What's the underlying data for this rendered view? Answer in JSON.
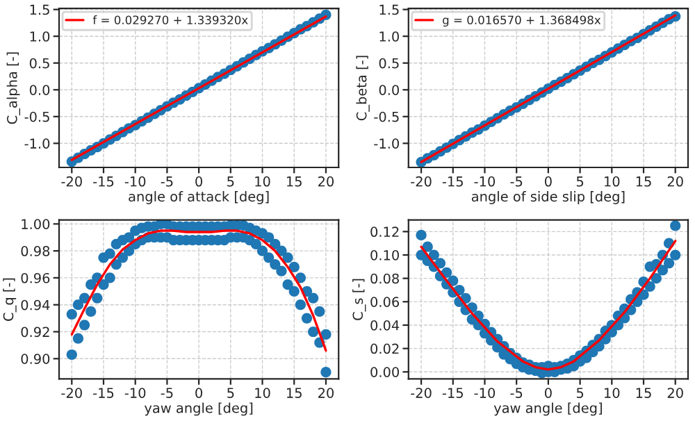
{
  "chart_data": [
    {
      "type": "scatter",
      "xlabel": "angle of attack [deg]",
      "ylabel": "C_alpha [-]",
      "xlim": [
        -22,
        22
      ],
      "ylim": [
        -1.45,
        1.52
      ],
      "xticks": [
        -20,
        -15,
        -10,
        -5,
        0,
        5,
        10,
        15,
        20
      ],
      "yticks": [
        {
          "value": -1,
          "label": "-1.0"
        },
        -0.5,
        {
          "value": 0,
          "label": "0.0"
        },
        0.5,
        {
          "value": 1,
          "label": "1.0"
        },
        1.5
      ],
      "grid": true,
      "legend": "top left",
      "series": [
        {
          "marker": "circle",
          "color": "#1f77b4",
          "x": [
            -20,
            -19,
            -18,
            -17,
            -16,
            -15,
            -14,
            -13,
            -12,
            -11,
            -10,
            -9,
            -8,
            -7,
            -6,
            -5,
            -4,
            -3,
            -2,
            -1,
            0,
            1,
            2,
            3,
            4,
            5,
            6,
            7,
            8,
            9,
            10,
            11,
            12,
            13,
            14,
            15,
            16,
            17,
            18,
            19,
            20
          ],
          "values": [
            -1.34,
            -1.27,
            -1.2,
            -1.13,
            -1.07,
            -1.0,
            -0.93,
            -0.86,
            -0.79,
            -0.72,
            -0.66,
            -0.59,
            -0.52,
            -0.45,
            -0.38,
            -0.31,
            -0.24,
            -0.18,
            -0.11,
            -0.04,
            0.03,
            0.1,
            0.17,
            0.24,
            0.3,
            0.37,
            0.44,
            0.51,
            0.58,
            0.65,
            0.72,
            0.78,
            0.85,
            0.92,
            0.99,
            1.06,
            1.13,
            1.19,
            1.26,
            1.33,
            1.4
          ]
        },
        {
          "type": "line",
          "name": "f = 0.029270 + 1.339320x",
          "color": "#ff0000",
          "x": [
            -20,
            20
          ],
          "values": [
            -1.31,
            1.37
          ]
        }
      ]
    },
    {
      "type": "scatter",
      "xlabel": "angle of side slip [deg]",
      "ylabel": "C_beta [-]",
      "xlim": [
        -22,
        22
      ],
      "ylim": [
        -1.45,
        1.52
      ],
      "xticks": [
        -20,
        -15,
        -10,
        -5,
        0,
        5,
        10,
        15,
        20
      ],
      "yticks": [
        {
          "value": -1,
          "label": "-1.0"
        },
        -0.5,
        {
          "value": 0,
          "label": "0.0"
        },
        0.5,
        {
          "value": 1,
          "label": "1.0"
        },
        1.5
      ],
      "grid": true,
      "legend": "top left",
      "series": [
        {
          "marker": "circle",
          "color": "#1f77b4",
          "x": [
            -20,
            -19,
            -18,
            -17,
            -16,
            -15,
            -14,
            -13,
            -12,
            -11,
            -10,
            -9,
            -8,
            -7,
            -6,
            -5,
            -4,
            -3,
            -2,
            -1,
            0,
            1,
            2,
            3,
            4,
            5,
            6,
            7,
            8,
            9,
            10,
            11,
            12,
            13,
            14,
            15,
            16,
            17,
            18,
            19,
            20
          ],
          "values": [
            -1.35,
            -1.28,
            -1.22,
            -1.15,
            -1.08,
            -1.01,
            -0.94,
            -0.87,
            -0.8,
            -0.74,
            -0.67,
            -0.6,
            -0.53,
            -0.46,
            -0.39,
            -0.33,
            -0.26,
            -0.19,
            -0.12,
            -0.05,
            0.02,
            0.09,
            0.15,
            0.22,
            0.29,
            0.36,
            0.43,
            0.5,
            0.56,
            0.63,
            0.7,
            0.77,
            0.84,
            0.91,
            0.97,
            1.04,
            1.11,
            1.18,
            1.25,
            1.32,
            1.37
          ]
        },
        {
          "type": "line",
          "name": "g = 0.016570 + 1.368498x",
          "color": "#ff0000",
          "x": [
            -20,
            20
          ],
          "values": [
            -1.35,
            1.39
          ]
        }
      ]
    },
    {
      "type": "scatter",
      "xlabel": "yaw angle [deg]",
      "ylabel": "C_q [-]",
      "xlim": [
        -22,
        22
      ],
      "ylim": [
        0.885,
        1.003
      ],
      "xticks": [
        -20,
        -15,
        -10,
        -5,
        0,
        5,
        10,
        15,
        20
      ],
      "yticks": [
        {
          "value": 0.9,
          "label": "0.90"
        },
        0.92,
        0.94,
        0.96,
        0.98,
        {
          "value": 1,
          "label": "1.00"
        }
      ],
      "grid": true,
      "series": [
        {
          "marker": "circle",
          "color": "#1f77b4",
          "x": [
            -20,
            -20,
            -19,
            -19,
            -18,
            -18,
            -17,
            -17,
            -16,
            -16,
            -15,
            -15,
            -14,
            -14,
            -13,
            -13,
            -12,
            -12,
            -11,
            -11,
            -10,
            -10,
            -9,
            -9,
            -8,
            -8,
            -7,
            -7,
            -6,
            -6,
            -5,
            -5,
            -4,
            -4,
            -3,
            -3,
            -2,
            -2,
            -1,
            -1,
            0,
            0,
            1,
            1,
            2,
            2,
            3,
            3,
            4,
            4,
            5,
            5,
            6,
            6,
            7,
            7,
            8,
            8,
            9,
            9,
            10,
            10,
            11,
            11,
            12,
            12,
            13,
            13,
            14,
            14,
            15,
            15,
            16,
            16,
            17,
            17,
            18,
            18,
            19,
            19,
            20,
            20
          ],
          "values": [
            0.903,
            0.933,
            0.915,
            0.94,
            0.925,
            0.945,
            0.935,
            0.955,
            0.945,
            0.96,
            0.955,
            0.975,
            0.96,
            0.978,
            0.97,
            0.985,
            0.975,
            0.988,
            0.98,
            0.99,
            0.985,
            0.995,
            0.988,
            0.997,
            0.99,
            0.998,
            0.99,
            0.998,
            0.99,
            1.0,
            0.99,
            1.0,
            0.988,
            0.998,
            0.988,
            0.998,
            0.988,
            0.998,
            0.988,
            0.998,
            0.988,
            0.998,
            0.988,
            0.998,
            0.988,
            0.998,
            0.988,
            0.998,
            0.988,
            0.998,
            0.99,
            0.999,
            0.99,
            0.999,
            0.99,
            0.999,
            0.988,
            0.997,
            0.985,
            0.995,
            0.98,
            0.993,
            0.975,
            0.99,
            0.97,
            0.985,
            0.965,
            0.98,
            0.955,
            0.975,
            0.95,
            0.968,
            0.94,
            0.96,
            0.93,
            0.95,
            0.92,
            0.945,
            0.912,
            0.935,
            0.89,
            0.918
          ]
        },
        {
          "type": "line",
          "color": "#ff0000",
          "x": [
            -20,
            -18,
            -16,
            -14,
            -12,
            -10,
            -8,
            -6,
            -4,
            -2,
            0,
            2,
            4,
            6,
            8,
            10,
            12,
            14,
            16,
            18,
            20
          ],
          "values": [
            0.918,
            0.937,
            0.955,
            0.97,
            0.981,
            0.988,
            0.993,
            0.995,
            0.995,
            0.994,
            0.994,
            0.994,
            0.995,
            0.995,
            0.993,
            0.988,
            0.98,
            0.968,
            0.953,
            0.932,
            0.906
          ]
        }
      ]
    },
    {
      "type": "scatter",
      "xlabel": "yaw angle [deg]",
      "ylabel": "C_s [-]",
      "xlim": [
        -22,
        22
      ],
      "ylim": [
        -0.006,
        0.13
      ],
      "xticks": [
        -20,
        -15,
        -10,
        -5,
        0,
        5,
        10,
        15,
        20
      ],
      "yticks": [
        {
          "value": 0,
          "label": "0.00"
        },
        0.02,
        0.04,
        0.06,
        0.08,
        {
          "value": 0.1,
          "label": "0.10"
        },
        0.12
      ],
      "grid": true,
      "series": [
        {
          "marker": "circle",
          "color": "#1f77b4",
          "x": [
            -20,
            -20,
            -19,
            -19,
            -18,
            -18,
            -17,
            -17,
            -16,
            -16,
            -15,
            -15,
            -14,
            -14,
            -13,
            -13,
            -12,
            -12,
            -11,
            -11,
            -10,
            -10,
            -9,
            -9,
            -8,
            -8,
            -7,
            -7,
            -6,
            -6,
            -5,
            -5,
            -4,
            -4,
            -3,
            -3,
            -2,
            -2,
            -1,
            -1,
            0,
            0,
            1,
            1,
            2,
            2,
            3,
            3,
            4,
            4,
            5,
            5,
            6,
            6,
            7,
            7,
            8,
            8,
            9,
            9,
            10,
            10,
            11,
            11,
            12,
            12,
            13,
            13,
            14,
            14,
            15,
            15,
            16,
            16,
            17,
            17,
            18,
            18,
            19,
            19,
            20,
            20
          ],
          "values": [
            0.1,
            0.117,
            0.095,
            0.107,
            0.09,
            0.1,
            0.082,
            0.093,
            0.075,
            0.085,
            0.068,
            0.078,
            0.06,
            0.07,
            0.053,
            0.063,
            0.045,
            0.055,
            0.04,
            0.048,
            0.033,
            0.041,
            0.027,
            0.034,
            0.021,
            0.028,
            0.015,
            0.022,
            0.011,
            0.016,
            0.007,
            0.012,
            0.004,
            0.008,
            0.002,
            0.006,
            0.001,
            0.004,
            -0.001,
            0.004,
            0.0,
            0.005,
            0.0,
            0.004,
            0.002,
            0.005,
            0.003,
            0.007,
            0.005,
            0.01,
            0.009,
            0.014,
            0.012,
            0.018,
            0.017,
            0.023,
            0.022,
            0.028,
            0.028,
            0.035,
            0.034,
            0.04,
            0.04,
            0.048,
            0.046,
            0.054,
            0.053,
            0.062,
            0.06,
            0.068,
            0.066,
            0.077,
            0.073,
            0.09,
            0.08,
            0.092,
            0.087,
            0.1,
            0.093,
            0.11,
            0.1,
            0.125
          ]
        },
        {
          "type": "line",
          "color": "#ff0000",
          "x": [
            -20,
            -16,
            -12,
            -8,
            -4,
            -2,
            0,
            2,
            4,
            8,
            12,
            16,
            20
          ],
          "values": [
            0.107,
            0.078,
            0.05,
            0.026,
            0.009,
            0.004,
            0.002,
            0.004,
            0.009,
            0.027,
            0.051,
            0.08,
            0.112
          ]
        }
      ]
    }
  ]
}
